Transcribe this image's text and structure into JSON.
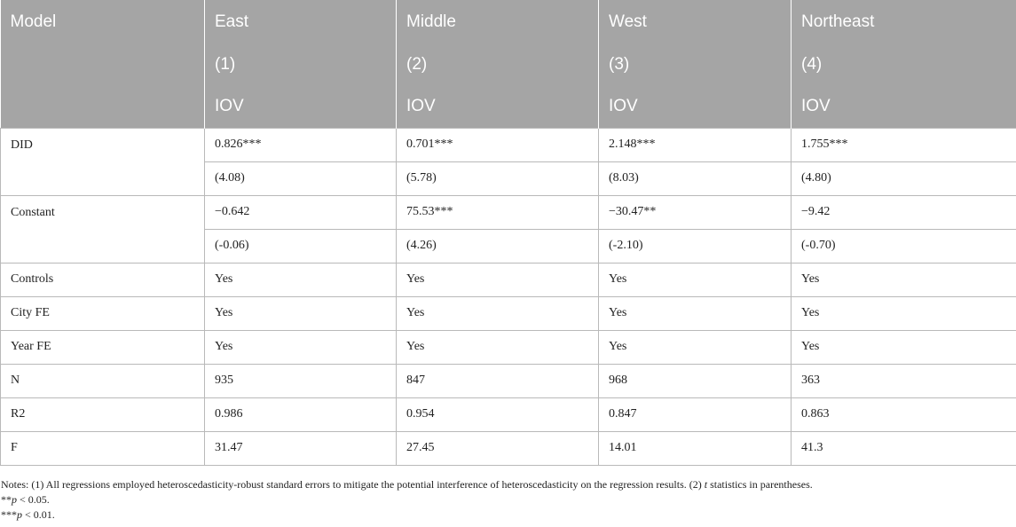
{
  "table": {
    "header": {
      "row_label": "Model",
      "regions": [
        "East",
        "Middle",
        "West",
        "Northeast"
      ],
      "numbers": [
        "(1)",
        "(2)",
        "(3)",
        "(4)"
      ],
      "dependent": [
        "IOV",
        "IOV",
        "IOV",
        "IOV"
      ]
    },
    "rows": {
      "did": {
        "label": "DID",
        "coef": [
          "0.826***",
          "0.701***",
          "2.148***",
          "1.755***"
        ],
        "t": [
          "(4.08)",
          "(5.78)",
          "(8.03)",
          "(4.80)"
        ]
      },
      "constant": {
        "label": "Constant",
        "coef": [
          "−0.642",
          "75.53***",
          "−30.47**",
          "−9.42"
        ],
        "t": [
          "(-0.06)",
          "(4.26)",
          "(-2.10)",
          "(-0.70)"
        ]
      },
      "controls": {
        "label": "Controls",
        "values": [
          "Yes",
          "Yes",
          "Yes",
          "Yes"
        ]
      },
      "city_fe": {
        "label": "City FE",
        "values": [
          "Yes",
          "Yes",
          "Yes",
          "Yes"
        ]
      },
      "year_fe": {
        "label": "Year FE",
        "values": [
          "Yes",
          "Yes",
          "Yes",
          "Yes"
        ]
      },
      "n": {
        "label": "N",
        "values": [
          "935",
          "847",
          "968",
          "363"
        ]
      },
      "r2": {
        "label": "R2",
        "values": [
          "0.986",
          "0.954",
          "0.847",
          "0.863"
        ]
      },
      "f": {
        "label": "F",
        "values": [
          "31.47",
          "27.45",
          "14.01",
          "41.3"
        ]
      }
    }
  },
  "notes": {
    "line1_a": "Notes: (1) All regressions employed heteroscedasticity-robust standard errors to mitigate the potential interference of heteroscedasticity on the regression results. (2) ",
    "line1_t": "t",
    "line1_b": " statistics in parentheses.",
    "line2_stars": "**",
    "line2_p": "p",
    "line2_rest": " < 0.05.",
    "line3_stars": "***",
    "line3_p": "p",
    "line3_rest": " < 0.01."
  },
  "colors": {
    "header_bg": "#a5a5a5",
    "header_text": "#ffffff",
    "grid": "#b9b9b9"
  }
}
